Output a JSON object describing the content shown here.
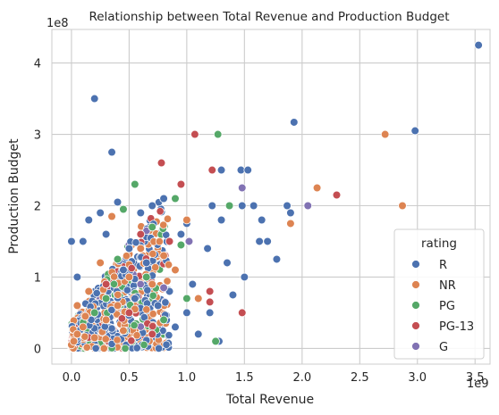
{
  "chart_data": {
    "type": "scatter",
    "title": "Relationship between Total Revenue and Production Budget",
    "xlabel": "Total Revenue",
    "ylabel": "Production Budget",
    "x_multiplier_label": "1e9",
    "y_multiplier_label": "1e8",
    "xlim": [
      -0.17,
      3.63
    ],
    "ylim": [
      -0.22,
      4.47
    ],
    "x_ticks": [
      0.0,
      0.5,
      1.0,
      1.5,
      2.0,
      2.5,
      3.0,
      3.5
    ],
    "x_tick_labels": [
      "0.0",
      "0.5",
      "1.0",
      "1.5",
      "2.0",
      "2.5",
      "3.0",
      "3.5"
    ],
    "y_ticks": [
      0,
      1,
      2,
      3,
      4
    ],
    "y_tick_labels": [
      "0",
      "1",
      "2",
      "3",
      "4"
    ],
    "grid": true,
    "legend": {
      "title": "rating",
      "placement": "bottom-right",
      "entries": [
        "R",
        "NR",
        "PG",
        "PG-13",
        "G"
      ]
    },
    "series": [
      {
        "name": "R",
        "color": "#4c72b0",
        "points": [
          [
            3.53,
            4.25
          ],
          [
            2.98,
            3.05
          ],
          [
            1.93,
            3.17
          ],
          [
            0.2,
            3.5
          ],
          [
            0.35,
            2.75
          ],
          [
            1.47,
            2.5
          ],
          [
            1.53,
            2.5
          ],
          [
            1.3,
            2.5
          ],
          [
            1.48,
            2.0
          ],
          [
            1.58,
            2.0
          ],
          [
            1.65,
            1.8
          ],
          [
            1.7,
            1.5
          ],
          [
            1.78,
            1.25
          ],
          [
            1.87,
            2.0
          ],
          [
            1.9,
            1.9
          ],
          [
            1.63,
            1.5
          ],
          [
            1.22,
            2.0
          ],
          [
            1.3,
            1.8
          ],
          [
            1.0,
            1.75
          ],
          [
            1.5,
            1.0
          ],
          [
            1.4,
            0.75
          ],
          [
            1.2,
            0.5
          ],
          [
            1.05,
            0.9
          ],
          [
            0.95,
            1.6
          ],
          [
            0.8,
            2.1
          ],
          [
            0.7,
            2.0
          ],
          [
            0.6,
            1.9
          ],
          [
            0.4,
            2.05
          ],
          [
            0.25,
            1.9
          ],
          [
            0.15,
            1.8
          ],
          [
            0.1,
            1.5
          ],
          [
            0.0,
            1.5
          ],
          [
            0.05,
            1.0
          ],
          [
            0.3,
            1.6
          ],
          [
            0.5,
            1.4
          ],
          [
            0.65,
            1.2
          ],
          [
            0.85,
            0.8
          ],
          [
            1.0,
            0.5
          ],
          [
            0.9,
            0.3
          ],
          [
            0.75,
            0.6
          ],
          [
            1.28,
            0.1
          ],
          [
            1.1,
            0.2
          ],
          [
            1.18,
            1.4
          ],
          [
            1.35,
            1.2
          ],
          [
            0.55,
            0.7
          ],
          [
            0.45,
            1.1
          ]
        ]
      },
      {
        "name": "NR",
        "color": "#dd8452",
        "points": [
          [
            2.72,
            3.0
          ],
          [
            2.87,
            2.0
          ],
          [
            2.13,
            2.25
          ],
          [
            1.9,
            1.75
          ],
          [
            0.0,
            0.05
          ],
          [
            0.02,
            0.1
          ],
          [
            0.05,
            0.2
          ],
          [
            0.1,
            0.3
          ],
          [
            0.2,
            0.15
          ],
          [
            0.3,
            0.4
          ],
          [
            0.4,
            0.6
          ],
          [
            0.15,
            0.8
          ],
          [
            0.25,
            1.2
          ],
          [
            0.5,
            1.0
          ],
          [
            0.6,
            1.4
          ],
          [
            0.8,
            1.3
          ],
          [
            1.0,
            1.8
          ],
          [
            1.1,
            0.7
          ],
          [
            0.35,
            1.85
          ],
          [
            0.7,
            0.9
          ],
          [
            0.05,
            0.6
          ],
          [
            0.12,
            0.45
          ],
          [
            0.45,
            0.25
          ],
          [
            0.55,
            0.55
          ],
          [
            0.9,
            1.1
          ]
        ]
      },
      {
        "name": "PG",
        "color": "#55a868",
        "points": [
          [
            1.27,
            3.0
          ],
          [
            1.25,
            0.1
          ],
          [
            0.55,
            2.3
          ],
          [
            0.7,
            1.7
          ],
          [
            0.9,
            2.1
          ],
          [
            1.37,
            2.0
          ],
          [
            0.4,
            1.25
          ],
          [
            1.0,
            0.7
          ],
          [
            0.3,
            0.7
          ],
          [
            0.45,
            1.95
          ],
          [
            0.65,
            1.0
          ],
          [
            0.2,
            0.5
          ],
          [
            0.8,
            0.4
          ],
          [
            0.95,
            1.45
          ]
        ]
      },
      {
        "name": "PG-13",
        "color": "#c44e52",
        "points": [
          [
            2.3,
            2.15
          ],
          [
            1.07,
            3.0
          ],
          [
            0.78,
            2.6
          ],
          [
            0.95,
            2.3
          ],
          [
            1.22,
            2.5
          ],
          [
            1.2,
            0.65
          ],
          [
            1.48,
            0.5
          ],
          [
            1.2,
            0.8
          ],
          [
            0.85,
            1.5
          ],
          [
            0.5,
            0.5
          ],
          [
            0.3,
            0.9
          ],
          [
            0.6,
            1.6
          ],
          [
            0.7,
            0.2
          ]
        ]
      },
      {
        "name": "G",
        "color": "#8172b3",
        "points": [
          [
            1.48,
            2.25
          ],
          [
            2.05,
            2.0
          ],
          [
            1.02,
            1.5
          ],
          [
            0.8,
            0.85
          ]
        ]
      }
    ]
  }
}
